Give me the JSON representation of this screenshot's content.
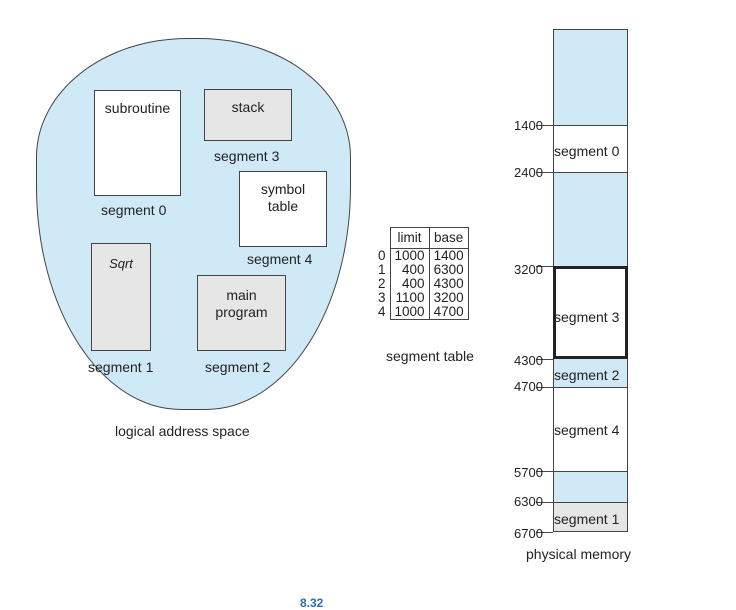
{
  "logical": {
    "title": "logical address space",
    "subroutine": "subroutine",
    "stack": "stack",
    "symbol_table_line1": "symbol",
    "symbol_table_line2": "table",
    "sqrt": "Sqrt",
    "main_line1": "main",
    "main_line2": "program",
    "seg0": "segment 0",
    "seg1": "segment 1",
    "seg2": "segment 2",
    "seg3": "segment 3",
    "seg4": "segment 4"
  },
  "segment_table": {
    "caption": "segment table",
    "headers": [
      "limit",
      "base"
    ],
    "rows": [
      {
        "index": "0",
        "limit": "1000",
        "base": "1400"
      },
      {
        "index": "1",
        "limit": "400",
        "base": "6300"
      },
      {
        "index": "2",
        "limit": "400",
        "base": "4300"
      },
      {
        "index": "3",
        "limit": "1100",
        "base": "3200"
      },
      {
        "index": "4",
        "limit": "1000",
        "base": "4700"
      }
    ]
  },
  "physical": {
    "title": "physical memory",
    "addresses": [
      "1400",
      "2400",
      "3200",
      "4300",
      "4700",
      "5700",
      "6300",
      "6700"
    ],
    "labels": [
      "segment 0",
      "segment 3",
      "segment 2",
      "segment 4",
      "segment 1"
    ]
  },
  "footer": "8.32",
  "colors": {
    "free": "#cfe9f7",
    "segment_grey": "#e6e6e6",
    "footer": "#2a6db5"
  }
}
